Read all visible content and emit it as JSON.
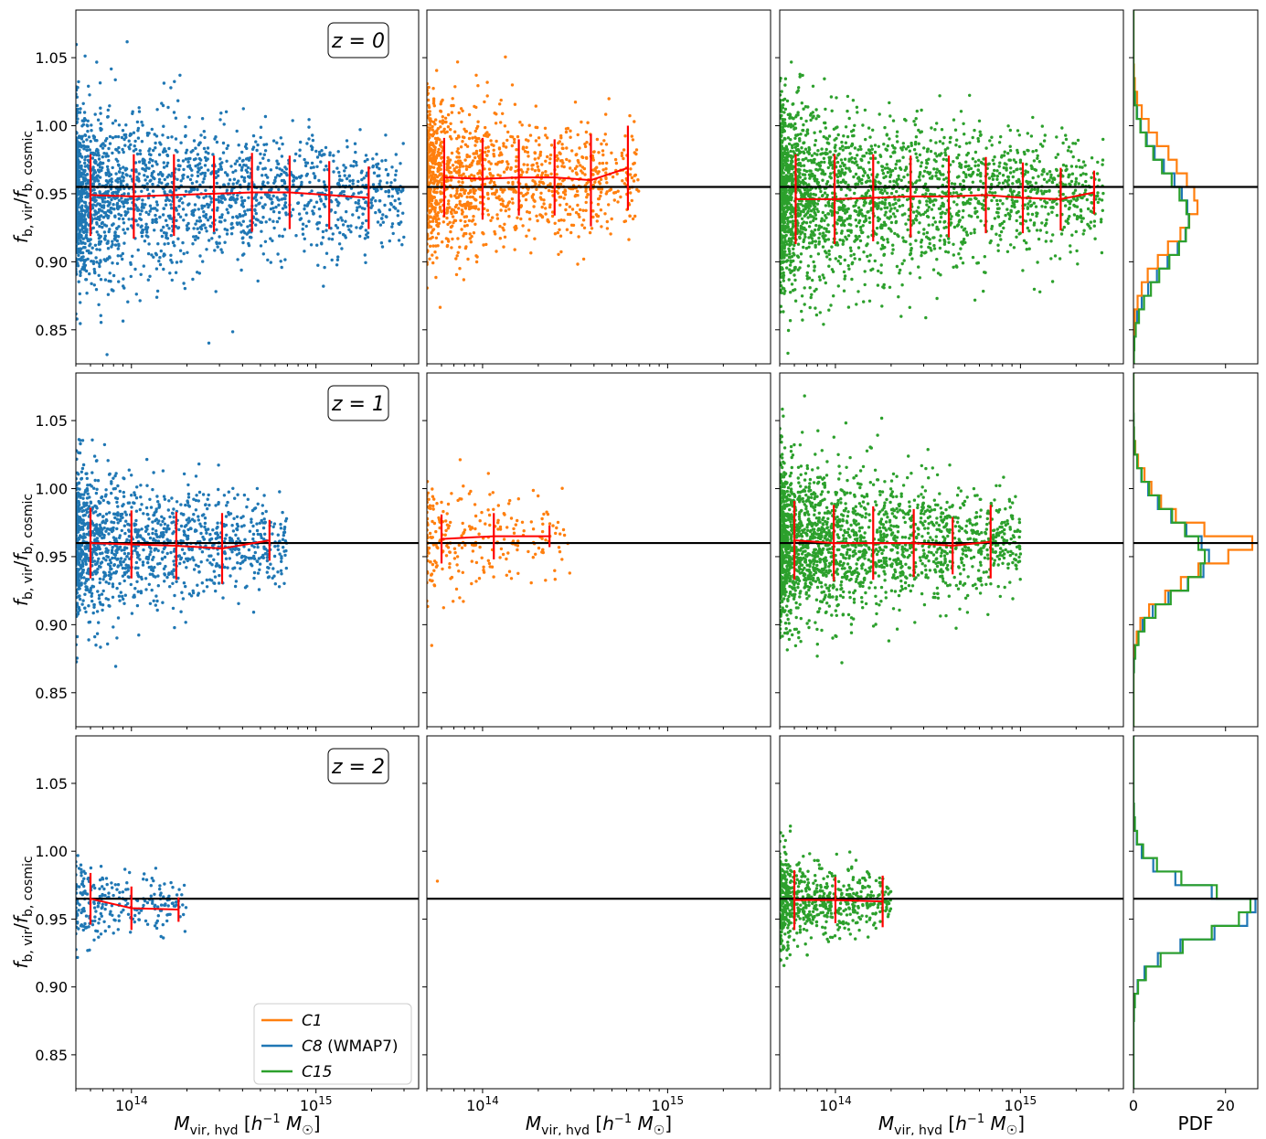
{
  "chart_data": {
    "type": "scatter",
    "layout": "3 rows x 4 columns (3 scatter panels + 1 histogram panel per row)",
    "rows": [
      {
        "z_label": "z = 0",
        "reference_line": 0.955
      },
      {
        "z_label": "z = 1",
        "reference_line": 0.96
      },
      {
        "z_label": "z = 2",
        "reference_line": 0.965
      }
    ],
    "ylabel": "f_b,vir / f_b,cosmic",
    "xlabel": "M_vir,hyd [h^-1 M_☉]",
    "hist_xlabel": "PDF",
    "ylim": [
      0.825,
      1.085
    ],
    "yticks": [
      "0.85",
      "0.90",
      "0.95",
      "1.00",
      "1.05"
    ],
    "xscale": "log",
    "xlim": [
      50000000000000,
      3600000000000000
    ],
    "xticks": [
      "10^14",
      "10^15"
    ],
    "hist_xlim": [
      0,
      27
    ],
    "hist_xticks": [
      "0",
      "20"
    ],
    "colors": {
      "C1": "#ff7f0e",
      "C8": "#1f77b4",
      "C15": "#2ca02c",
      "median": "#ff0000",
      "reference": "#000000"
    },
    "legend": {
      "position": "lower-right of bottom-left panel",
      "entries": [
        {
          "key": "C1",
          "label": "C1",
          "color": "#ff7f0e"
        },
        {
          "key": "C8",
          "label": "C8 (WMAP7)",
          "color": "#1f77b4"
        },
        {
          "key": "C15",
          "label": "C15",
          "color": "#2ca02c"
        }
      ]
    },
    "panels": [
      {
        "row": 0,
        "sim": "C8",
        "color": "#1f77b4",
        "scatter": {
          "xmin": 50000000000000,
          "xmax": 3000000000000000,
          "center": 0.95,
          "sigma": 0.032,
          "n": 2200
        },
        "medians": {
          "x": [
            60000000000000,
            103000000000000,
            170000000000000,
            280000000000000,
            450000000000000,
            720000000000000,
            1180000000000000,
            1930000000000000
          ],
          "y": [
            0.949,
            0.948,
            0.949,
            0.95,
            0.951,
            0.951,
            0.949,
            0.947
          ],
          "err": [
            0.03,
            0.031,
            0.03,
            0.028,
            0.029,
            0.027,
            0.025,
            0.023
          ]
        }
      },
      {
        "row": 0,
        "sim": "C1",
        "color": "#ff7f0e",
        "scatter": {
          "xmin": 50000000000000,
          "xmax": 700000000000000,
          "center": 0.96,
          "sigma": 0.03,
          "n": 1300
        },
        "medians": {
          "x": [
            62000000000000,
            100000000000000,
            157000000000000,
            245000000000000,
            385000000000000,
            610000000000000
          ],
          "y": [
            0.962,
            0.961,
            0.962,
            0.962,
            0.96,
            0.969
          ],
          "err": [
            0.029,
            0.03,
            0.028,
            0.028,
            0.034,
            0.031
          ]
        }
      },
      {
        "row": 0,
        "sim": "C15",
        "color": "#2ca02c",
        "scatter": {
          "xmin": 50000000000000,
          "xmax": 2800000000000000,
          "center": 0.948,
          "sigma": 0.034,
          "n": 2600
        },
        "medians": {
          "x": [
            61000000000000,
            99000000000000,
            160000000000000,
            255000000000000,
            410000000000000,
            650000000000000,
            1030000000000000,
            1650000000000000,
            2500000000000000
          ],
          "y": [
            0.946,
            0.946,
            0.947,
            0.948,
            0.948,
            0.949,
            0.947,
            0.946,
            0.951
          ],
          "err": [
            0.033,
            0.033,
            0.032,
            0.03,
            0.03,
            0.028,
            0.026,
            0.023,
            0.016
          ]
        }
      },
      {
        "row": 1,
        "sim": "C8",
        "color": "#1f77b4",
        "scatter": {
          "xmin": 50000000000000,
          "xmax": 700000000000000,
          "center": 0.96,
          "sigma": 0.028,
          "n": 1400
        },
        "medians": {
          "x": [
            60000000000000,
            100000000000000,
            175000000000000,
            310000000000000,
            560000000000000
          ],
          "y": [
            0.96,
            0.959,
            0.958,
            0.956,
            0.962
          ],
          "err": [
            0.026,
            0.025,
            0.025,
            0.026,
            0.015
          ]
        }
      },
      {
        "row": 1,
        "sim": "C1",
        "color": "#ff7f0e",
        "scatter": {
          "xmin": 50000000000000,
          "xmax": 300000000000000,
          "center": 0.962,
          "sigma": 0.024,
          "n": 260
        },
        "medians": {
          "x": [
            60000000000000,
            115000000000000,
            230000000000000
          ],
          "y": [
            0.963,
            0.965,
            0.965
          ],
          "err": [
            0.018,
            0.017,
            0.008
          ]
        }
      },
      {
        "row": 1,
        "sim": "C15",
        "color": "#2ca02c",
        "scatter": {
          "xmin": 50000000000000,
          "xmax": 1000000000000000,
          "center": 0.96,
          "sigma": 0.03,
          "n": 2200
        },
        "medians": {
          "x": [
            60000000000000,
            98000000000000,
            160000000000000,
            265000000000000,
            430000000000000,
            690000000000000
          ],
          "y": [
            0.962,
            0.96,
            0.96,
            0.96,
            0.958,
            0.961
          ],
          "err": [
            0.029,
            0.028,
            0.027,
            0.025,
            0.021,
            0.027
          ]
        }
      },
      {
        "row": 2,
        "sim": "C8",
        "color": "#1f77b4",
        "scatter": {
          "xmin": 50000000000000,
          "xmax": 200000000000000,
          "center": 0.962,
          "sigma": 0.016,
          "n": 260
        },
        "medians": {
          "x": [
            60000000000000,
            100000000000000,
            180000000000000
          ],
          "y": [
            0.965,
            0.958,
            0.957
          ],
          "err": [
            0.019,
            0.016,
            0.009
          ]
        }
      },
      {
        "row": 2,
        "sim": "C1",
        "color": "#ff7f0e",
        "scatter": {
          "xmin": 57000000000000,
          "xmax": 58000000000000,
          "center": 0.978,
          "sigma": 0.0,
          "n": 1
        },
        "medians": {
          "x": [],
          "y": [],
          "err": []
        }
      },
      {
        "row": 2,
        "sim": "C15",
        "color": "#2ca02c",
        "scatter": {
          "xmin": 50000000000000,
          "xmax": 200000000000000,
          "center": 0.963,
          "sigma": 0.018,
          "n": 700
        },
        "medians": {
          "x": [
            60000000000000,
            100000000000000,
            180000000000000
          ],
          "y": [
            0.964,
            0.964,
            0.963
          ],
          "err": [
            0.022,
            0.017,
            0.019
          ]
        }
      }
    ],
    "histograms": [
      {
        "row": 0,
        "bin_edges": [
          0.825,
          0.835,
          0.845,
          0.855,
          0.865,
          0.875,
          0.885,
          0.895,
          0.905,
          0.915,
          0.925,
          0.935,
          0.945,
          0.955,
          0.965,
          0.975,
          0.985,
          0.995,
          1.005,
          1.015,
          1.025,
          1.035,
          1.045,
          1.055,
          1.065,
          1.075,
          1.085
        ],
        "series": [
          {
            "sim": "C8",
            "color": "#1f77b4",
            "counts": [
              0.05,
              0.1,
              0.3,
              0.8,
              1.8,
              3.2,
              5.1,
              7.4,
              9.6,
              11.3,
              12.0,
              11.7,
              10.5,
              8.9,
              6.6,
              4.6,
              2.9,
              1.6,
              0.8,
              0.35,
              0.12,
              0.03,
              0,
              0,
              0,
              0
            ]
          },
          {
            "sim": "C1",
            "color": "#ff7f0e",
            "counts": [
              0,
              0,
              0.1,
              0.3,
              0.9,
              1.8,
              3.1,
              5.3,
              7.5,
              10.2,
              12.1,
              13.9,
              13.2,
              11.6,
              9.4,
              7.6,
              5.1,
              3.3,
              1.8,
              0.8,
              0.3,
              0.1,
              0,
              0,
              0,
              0
            ]
          },
          {
            "sim": "C15",
            "color": "#2ca02c",
            "counts": [
              0.1,
              0.2,
              0.5,
              1.2,
              2.3,
              3.8,
              5.6,
              7.8,
              9.9,
              11.4,
              12.1,
              11.5,
              10.0,
              8.3,
              6.2,
              4.3,
              2.7,
              1.5,
              0.7,
              0.3,
              0.1,
              0.03,
              0,
              0,
              0,
              0
            ]
          }
        ]
      },
      {
        "row": 1,
        "bin_edges": [
          0.825,
          0.835,
          0.845,
          0.855,
          0.865,
          0.875,
          0.885,
          0.895,
          0.905,
          0.915,
          0.925,
          0.935,
          0.945,
          0.955,
          0.965,
          0.975,
          0.985,
          0.995,
          1.005,
          1.015,
          1.025,
          1.035,
          1.045,
          1.055,
          1.065,
          1.075,
          1.085
        ],
        "series": [
          {
            "sim": "C8",
            "color": "#1f77b4",
            "counts": [
              0,
              0,
              0,
              0,
              0.1,
              0.3,
              0.8,
              2.0,
              4.2,
              7.6,
              11.8,
              15.2,
              16.4,
              14.8,
              11.5,
              8.2,
              5.3,
              3.2,
              1.7,
              0.8,
              0.35,
              0.1,
              0.03,
              0,
              0,
              0
            ]
          },
          {
            "sim": "C1",
            "color": "#ff7f0e",
            "counts": [
              0,
              0,
              0,
              0,
              0,
              0.2,
              0.7,
              1.5,
              3.4,
              6.9,
              10.3,
              14.1,
              20.6,
              25.8,
              15.4,
              9.2,
              6.0,
              3.9,
              2.4,
              1.0,
              0.4,
              0.1,
              0,
              0,
              0,
              0
            ]
          },
          {
            "sim": "C15",
            "color": "#2ca02c",
            "counts": [
              0,
              0,
              0,
              0,
              0.1,
              0.4,
              1.1,
              2.4,
              4.8,
              8.1,
              11.9,
              14.6,
              15.5,
              14.1,
              11.2,
              8.4,
              5.6,
              3.4,
              1.8,
              0.8,
              0.3,
              0.1,
              0.03,
              0,
              0,
              0
            ]
          }
        ]
      },
      {
        "row": 2,
        "bin_edges": [
          0.825,
          0.835,
          0.845,
          0.855,
          0.865,
          0.875,
          0.885,
          0.895,
          0.905,
          0.915,
          0.925,
          0.935,
          0.945,
          0.955,
          0.965,
          0.975,
          0.985,
          0.995,
          1.005,
          1.015,
          1.025,
          1.035,
          1.045,
          1.055,
          1.065,
          1.075,
          1.085
        ],
        "series": [
          {
            "sim": "C8",
            "color": "#1f77b4",
            "counts": [
              0,
              0,
              0,
              0,
              0,
              0.1,
              0.3,
              0.9,
              2.4,
              5.3,
              10.2,
              17.6,
              24.7,
              26.5,
              17.0,
              9.1,
              4.3,
              1.8,
              0.7,
              0.3,
              0.1,
              0,
              0,
              0,
              0,
              0
            ]
          },
          {
            "sim": "C15",
            "color": "#2ca02c",
            "counts": [
              0,
              0,
              0,
              0,
              0,
              0.1,
              0.3,
              1.0,
              2.7,
              5.9,
              10.7,
              17.0,
              22.9,
              25.4,
              18.1,
              10.4,
              5.1,
              2.1,
              0.8,
              0.3,
              0.1,
              0,
              0,
              0,
              0,
              0
            ]
          }
        ]
      }
    ]
  }
}
